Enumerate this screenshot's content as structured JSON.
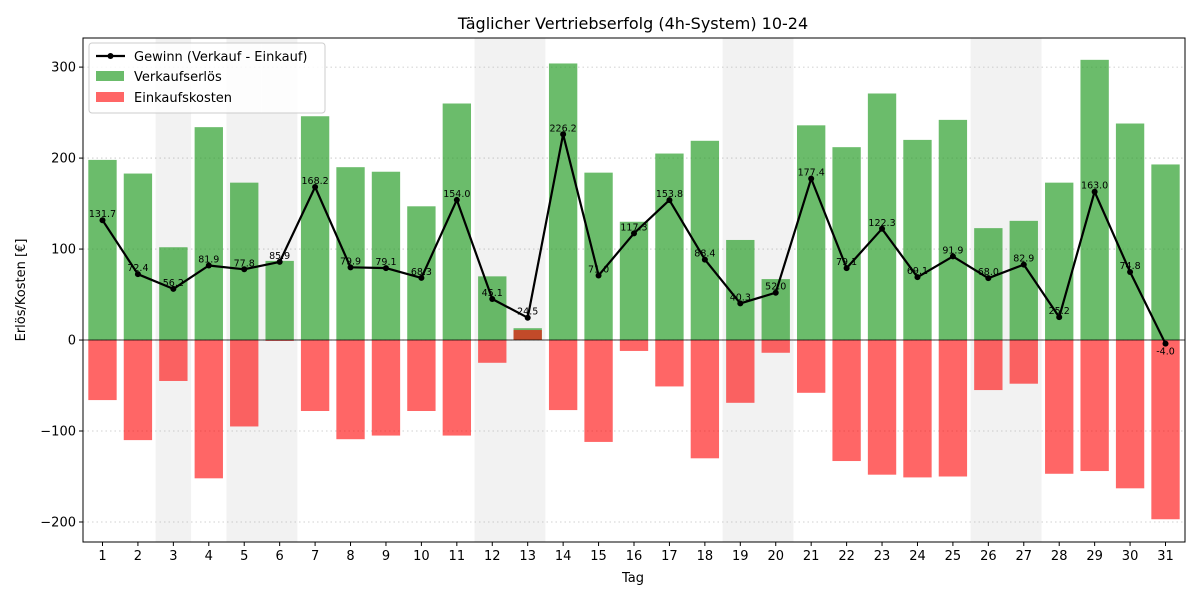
{
  "chart_data": {
    "type": "bar",
    "title": "Täglicher Vertriebserfolg (4h-System) 10-24",
    "xlabel": "Tag",
    "ylabel": "Erlös/Kosten [€]",
    "ylim": [
      -222,
      332
    ],
    "yticks": [
      -200,
      -100,
      0,
      100,
      200,
      300
    ],
    "grid": "horizontal dotted",
    "legend_position": "top-left",
    "categories": [
      "1",
      "2",
      "3",
      "4",
      "5",
      "6",
      "7",
      "8",
      "9",
      "10",
      "11",
      "12",
      "13",
      "14",
      "15",
      "16",
      "17",
      "18",
      "19",
      "20",
      "21",
      "22",
      "23",
      "24",
      "25",
      "26",
      "27",
      "28",
      "29",
      "30",
      "31"
    ],
    "weekend_days": [
      3,
      5,
      6,
      12,
      13,
      19,
      20,
      26,
      27
    ],
    "series": [
      {
        "name": "Gewinn (Verkauf - Einkauf)",
        "kind": "line",
        "color": "#000000",
        "values": [
          131.7,
          72.4,
          56.2,
          81.9,
          77.8,
          85.9,
          168.2,
          79.9,
          79.1,
          68.3,
          154.0,
          45.1,
          24.5,
          226.2,
          71.0,
          117.3,
          153.8,
          88.4,
          40.3,
          52.0,
          177.4,
          79.1,
          122.3,
          69.1,
          91.9,
          68.0,
          82.9,
          25.2,
          163.0,
          74.8,
          -4.0
        ],
        "labels": [
          "131.7",
          "72.4",
          "56.2",
          "81.9",
          "77.8",
          "85.9",
          "168.2",
          "79.9",
          "79.1",
          "68.3",
          "154.0",
          "45.1",
          "24.5",
          "226.2",
          "71.0",
          "117.3",
          "153.8",
          "88.4",
          "40.3",
          "52.0",
          "177.4",
          "79.1",
          "122.3",
          "69.1",
          "91.9",
          "68.0",
          "82.9",
          "25.2",
          "163.0",
          "74.8",
          "-4.0"
        ]
      },
      {
        "name": "Verkaufserlös",
        "kind": "bar",
        "color": "#2ca02c",
        "values": [
          198,
          183,
          102,
          234,
          173,
          87,
          246,
          190,
          185,
          147,
          260,
          70,
          13,
          304,
          184,
          130,
          205,
          219,
          110,
          67,
          236,
          212,
          271,
          220,
          242,
          123,
          131,
          173,
          308,
          238,
          193
        ]
      },
      {
        "name": "Einkaufskosten",
        "kind": "bar",
        "color": "#ff0000",
        "values": [
          -66,
          -110,
          -45,
          -152,
          -95,
          -1,
          -78,
          -109,
          -105,
          -78,
          -105,
          -25,
          11,
          -77,
          -112,
          -12,
          -51,
          -130,
          -69,
          -14,
          -58,
          -133,
          -148,
          -151,
          -150,
          -55,
          -48,
          -147,
          -144,
          -163,
          -197
        ]
      }
    ]
  }
}
